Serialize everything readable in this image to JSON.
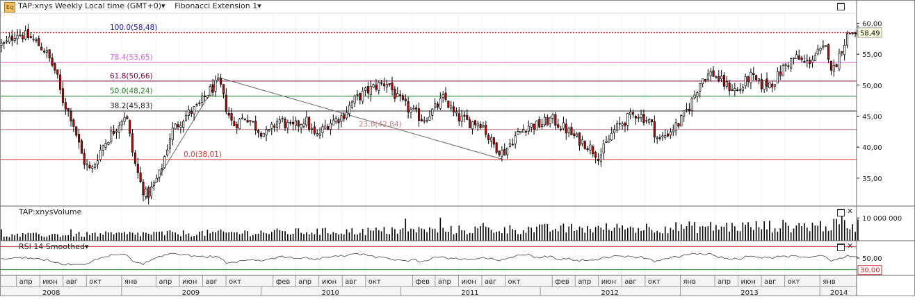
{
  "header": {
    "icon_label": "Eq",
    "title": "TAP:xnys Weekly Local time (GMT+0)▾",
    "study": "Fibonacci Extension 1▾"
  },
  "panes": {
    "volume_title": "TAP:xnysVolume",
    "rsi_title": "RSI 14 Smoothed▾"
  },
  "colors": {
    "candle_up": "#ffffff",
    "candle_down": "#cc0000",
    "outline": "#000000",
    "current_price": "#cc0000",
    "fib_100": "#1a1aa8",
    "fib_78": "#e060e0",
    "fib_61": "#800040",
    "fib_50": "#208020",
    "fib_38": "#202020",
    "fib_23": "#c08080",
    "fib_0": "#e03030"
  },
  "chart_data": {
    "type": "candlestick",
    "symbol": "TAP:xnys",
    "interval": "Weekly",
    "price_axis": {
      "ticks": [
        35,
        40,
        45,
        50,
        55,
        60
      ],
      "tick_labels": [
        "35,00",
        "40,00",
        "45,00",
        "50,00",
        "55,00",
        "60,00"
      ],
      "range": [
        30.5,
        61.5
      ]
    },
    "current_price": {
      "value": 58.49,
      "label": "58,49"
    },
    "fib_levels": [
      {
        "ratio": "100.0",
        "value": 58.48,
        "label": "100.0(58,48)",
        "color": "#1a1aa8"
      },
      {
        "ratio": "78.4",
        "value": 53.65,
        "label": "78.4(53,65)",
        "color": "#e060e0"
      },
      {
        "ratio": "61.8",
        "value": 50.66,
        "label": "61.8(50,66)",
        "color": "#800040"
      },
      {
        "ratio": "50.0",
        "value": 48.24,
        "label": "50.0(48,24)",
        "color": "#208020"
      },
      {
        "ratio": "38.2",
        "value": 45.83,
        "label": "38.2(45,83)",
        "color": "#202020"
      },
      {
        "ratio": "23.6",
        "value": 42.84,
        "label": "23.6(42,84)",
        "color": "#c08080"
      },
      {
        "ratio": "0.0",
        "value": 38.01,
        "label": "0.0(38,01)",
        "color": "#e03030"
      }
    ],
    "fib_anchors": [
      {
        "date": "2009-03-02",
        "price": 31.4
      },
      {
        "date": "2009-09-14",
        "price": 51.2
      },
      {
        "date": "2011-09-26",
        "price": 38.0
      }
    ],
    "price_path": [
      [
        "2008-03-03",
        56.5
      ],
      [
        "2008-03-31",
        58.5
      ],
      [
        "2008-05-12",
        57.5
      ],
      [
        "2008-06-16",
        55.5
      ],
      [
        "2008-07-14",
        52.0
      ],
      [
        "2008-07-28",
        48.0
      ],
      [
        "2008-08-25",
        44.5
      ],
      [
        "2008-09-22",
        38.0
      ],
      [
        "2008-10-13",
        36.0
      ],
      [
        "2008-11-10",
        40.0
      ],
      [
        "2008-12-15",
        43.0
      ],
      [
        "2009-01-12",
        45.5
      ],
      [
        "2009-02-02",
        38.0
      ],
      [
        "2009-02-23",
        33.5
      ],
      [
        "2009-03-09",
        32.0
      ],
      [
        "2009-04-13",
        36.0
      ],
      [
        "2009-05-11",
        42.5
      ],
      [
        "2009-06-15",
        45.0
      ],
      [
        "2009-07-20",
        46.5
      ],
      [
        "2009-08-17",
        49.0
      ],
      [
        "2009-09-14",
        50.5
      ],
      [
        "2009-09-28",
        47.0
      ],
      [
        "2009-10-19",
        43.5
      ],
      [
        "2009-11-23",
        45.0
      ],
      [
        "2009-12-21",
        43.0
      ],
      [
        "2010-01-18",
        42.0
      ],
      [
        "2010-02-15",
        44.5
      ],
      [
        "2010-03-22",
        43.0
      ],
      [
        "2010-04-26",
        44.5
      ],
      [
        "2010-05-24",
        41.5
      ],
      [
        "2010-06-28",
        44.0
      ],
      [
        "2010-08-02",
        45.0
      ],
      [
        "2010-08-30",
        47.5
      ],
      [
        "2010-10-04",
        49.0
      ],
      [
        "2010-11-01",
        50.0
      ],
      [
        "2010-11-29",
        50.5
      ],
      [
        "2010-12-20",
        48.0
      ],
      [
        "2011-01-24",
        46.0
      ],
      [
        "2011-02-28",
        44.5
      ],
      [
        "2011-03-28",
        46.0
      ],
      [
        "2011-04-25",
        48.0
      ],
      [
        "2011-05-23",
        45.0
      ],
      [
        "2011-06-27",
        44.0
      ],
      [
        "2011-08-01",
        44.0
      ],
      [
        "2011-08-22",
        41.0
      ],
      [
        "2011-09-26",
        39.0
      ],
      [
        "2011-10-24",
        41.5
      ],
      [
        "2011-11-28",
        43.5
      ],
      [
        "2011-12-26",
        43.5
      ],
      [
        "2012-01-30",
        44.5
      ],
      [
        "2012-03-05",
        43.0
      ],
      [
        "2012-04-02",
        41.5
      ],
      [
        "2012-04-30",
        40.5
      ],
      [
        "2012-06-04",
        38.5
      ],
      [
        "2012-07-09",
        42.5
      ],
      [
        "2012-08-13",
        44.5
      ],
      [
        "2012-09-10",
        45.5
      ],
      [
        "2012-10-15",
        44.0
      ],
      [
        "2012-11-05",
        41.0
      ],
      [
        "2012-12-03",
        42.5
      ],
      [
        "2012-12-31",
        44.0
      ],
      [
        "2013-01-28",
        47.0
      ],
      [
        "2013-02-25",
        51.0
      ],
      [
        "2013-03-25",
        52.0
      ],
      [
        "2013-04-29",
        50.0
      ],
      [
        "2013-06-03",
        49.0
      ],
      [
        "2013-07-01",
        51.5
      ],
      [
        "2013-07-29",
        50.0
      ],
      [
        "2013-09-02",
        50.5
      ],
      [
        "2013-09-30",
        53.0
      ],
      [
        "2013-10-28",
        54.5
      ],
      [
        "2013-11-25",
        53.5
      ],
      [
        "2013-12-23",
        55.0
      ],
      [
        "2014-01-20",
        56.0
      ],
      [
        "2014-02-03",
        52.0
      ],
      [
        "2014-02-24",
        55.5
      ],
      [
        "2014-03-17",
        58.5
      ]
    ],
    "volume": {
      "tick_labels": [
        "10 000 000"
      ],
      "typical": 6500000,
      "max": 14000000
    },
    "rsi": {
      "period": 14,
      "tick_labels": [
        "50,00",
        "30,00"
      ],
      "upper_band": 70,
      "lower_band": 30,
      "current": 62
    },
    "time_axis": {
      "start": "2008-02-18",
      "end": "2014-04-07",
      "months": [
        [
          "2008-04-01",
          "апр"
        ],
        [
          "2008-06-01",
          "июн"
        ],
        [
          "2008-08-01",
          "авг"
        ],
        [
          "2008-10-01",
          "окт"
        ],
        [
          "2009-01-01",
          "янв"
        ],
        [
          "2009-04-01",
          "апр"
        ],
        [
          "2009-06-01",
          "июн"
        ],
        [
          "2009-08-01",
          "авг"
        ],
        [
          "2009-10-01",
          "окт"
        ],
        [
          "2010-02-01",
          "фев"
        ],
        [
          "2010-04-01",
          "апр"
        ],
        [
          "2010-06-01",
          "июн"
        ],
        [
          "2010-08-01",
          "авг"
        ],
        [
          "2010-10-01",
          "окт"
        ],
        [
          "2011-02-01",
          "фев"
        ],
        [
          "2011-04-01",
          "апр"
        ],
        [
          "2011-06-01",
          "июн"
        ],
        [
          "2011-08-01",
          "авг"
        ],
        [
          "2011-10-01",
          "окт"
        ],
        [
          "2012-02-01",
          "фев"
        ],
        [
          "2012-04-01",
          "апр"
        ],
        [
          "2012-06-01",
          "июн"
        ],
        [
          "2012-08-01",
          "авг"
        ],
        [
          "2012-10-01",
          "окт"
        ],
        [
          "2013-01-01",
          "янв"
        ],
        [
          "2013-04-01",
          "апр"
        ],
        [
          "2013-06-01",
          "июн"
        ],
        [
          "2013-08-01",
          "авг"
        ],
        [
          "2013-10-01",
          "окт"
        ],
        [
          "2014-01-01",
          "янв"
        ]
      ],
      "years": [
        [
          "2008-07-01",
          "2008"
        ],
        [
          "2009-07-01",
          "2009"
        ],
        [
          "2010-07-01",
          "2010"
        ],
        [
          "2011-07-01",
          "2011"
        ],
        [
          "2012-07-01",
          "2012"
        ],
        [
          "2013-07-01",
          "2013"
        ],
        [
          "2014-02-20",
          "2014"
        ]
      ]
    }
  }
}
